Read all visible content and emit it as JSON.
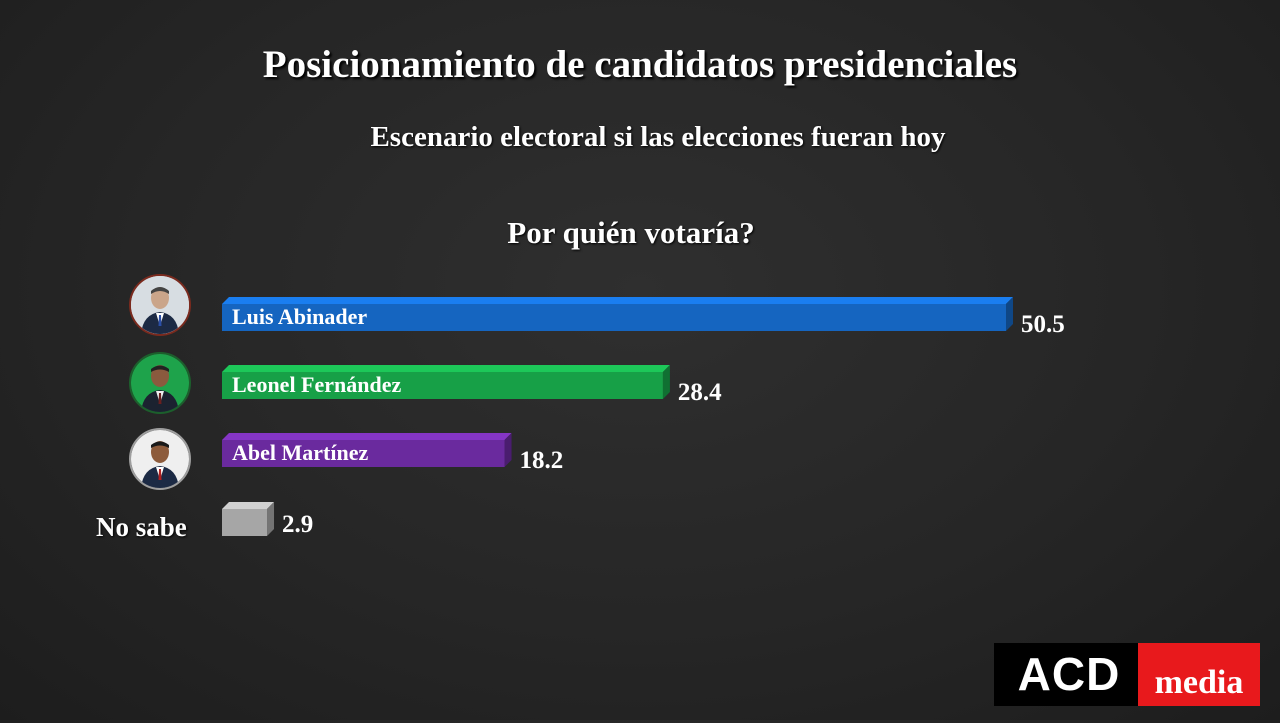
{
  "title": "Posicionamiento de candidatos presidenciales",
  "subtitle": "Escenario electoral si las elecciones fueran hoy",
  "question": "Por quién votaría?",
  "logo": {
    "left": "ACD",
    "right": "media"
  },
  "chart_data": {
    "type": "bar",
    "orientation": "horizontal",
    "categories": [
      "Luis Abinader",
      "Leonel Fernández",
      "Abel Martínez",
      "No sabe"
    ],
    "values": [
      50.5,
      28.4,
      18.2,
      2.9
    ],
    "value_labels": [
      "50.5",
      "28.4",
      "18.2",
      "2.9"
    ],
    "colors": [
      "#1565c0",
      "#17a047",
      "#6a2a9e",
      "#a6a6a6"
    ],
    "title": "Posicionamiento de candidatos presidenciales",
    "subtitle": "Escenario electoral si las elecciones fueran hoy",
    "xlabel": "",
    "ylabel": "",
    "grid": false,
    "legend": "none"
  }
}
